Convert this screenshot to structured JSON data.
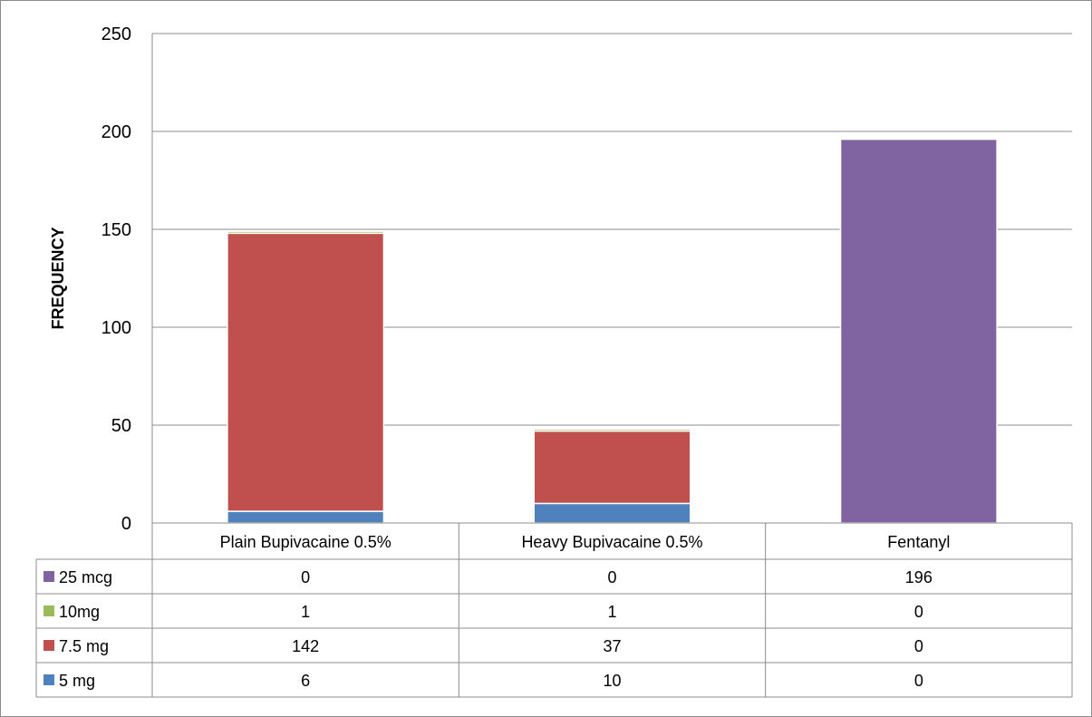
{
  "chart_data": {
    "type": "bar",
    "stacked": true,
    "title": "",
    "xlabel": "",
    "ylabel": "FREQUENCY",
    "ylim": [
      0,
      250
    ],
    "yticks": [
      0,
      50,
      100,
      150,
      200,
      250
    ],
    "grid": true,
    "legend": "data-table",
    "categories": [
      "Plain Bupivacaine 0.5%",
      "Heavy Bupivacaine 0.5%",
      "Fentanyl"
    ],
    "series": [
      {
        "name": "5 mg",
        "color": "#4f81bd",
        "values": [
          6,
          10,
          0
        ]
      },
      {
        "name": "7.5 mg",
        "color": "#c0504d",
        "values": [
          142,
          37,
          0
        ]
      },
      {
        "name": "10mg",
        "color": "#9bbb59",
        "values": [
          1,
          1,
          0
        ]
      },
      {
        "name": "25 mcg",
        "color": "#8064a2",
        "values": [
          0,
          0,
          196
        ]
      }
    ]
  }
}
